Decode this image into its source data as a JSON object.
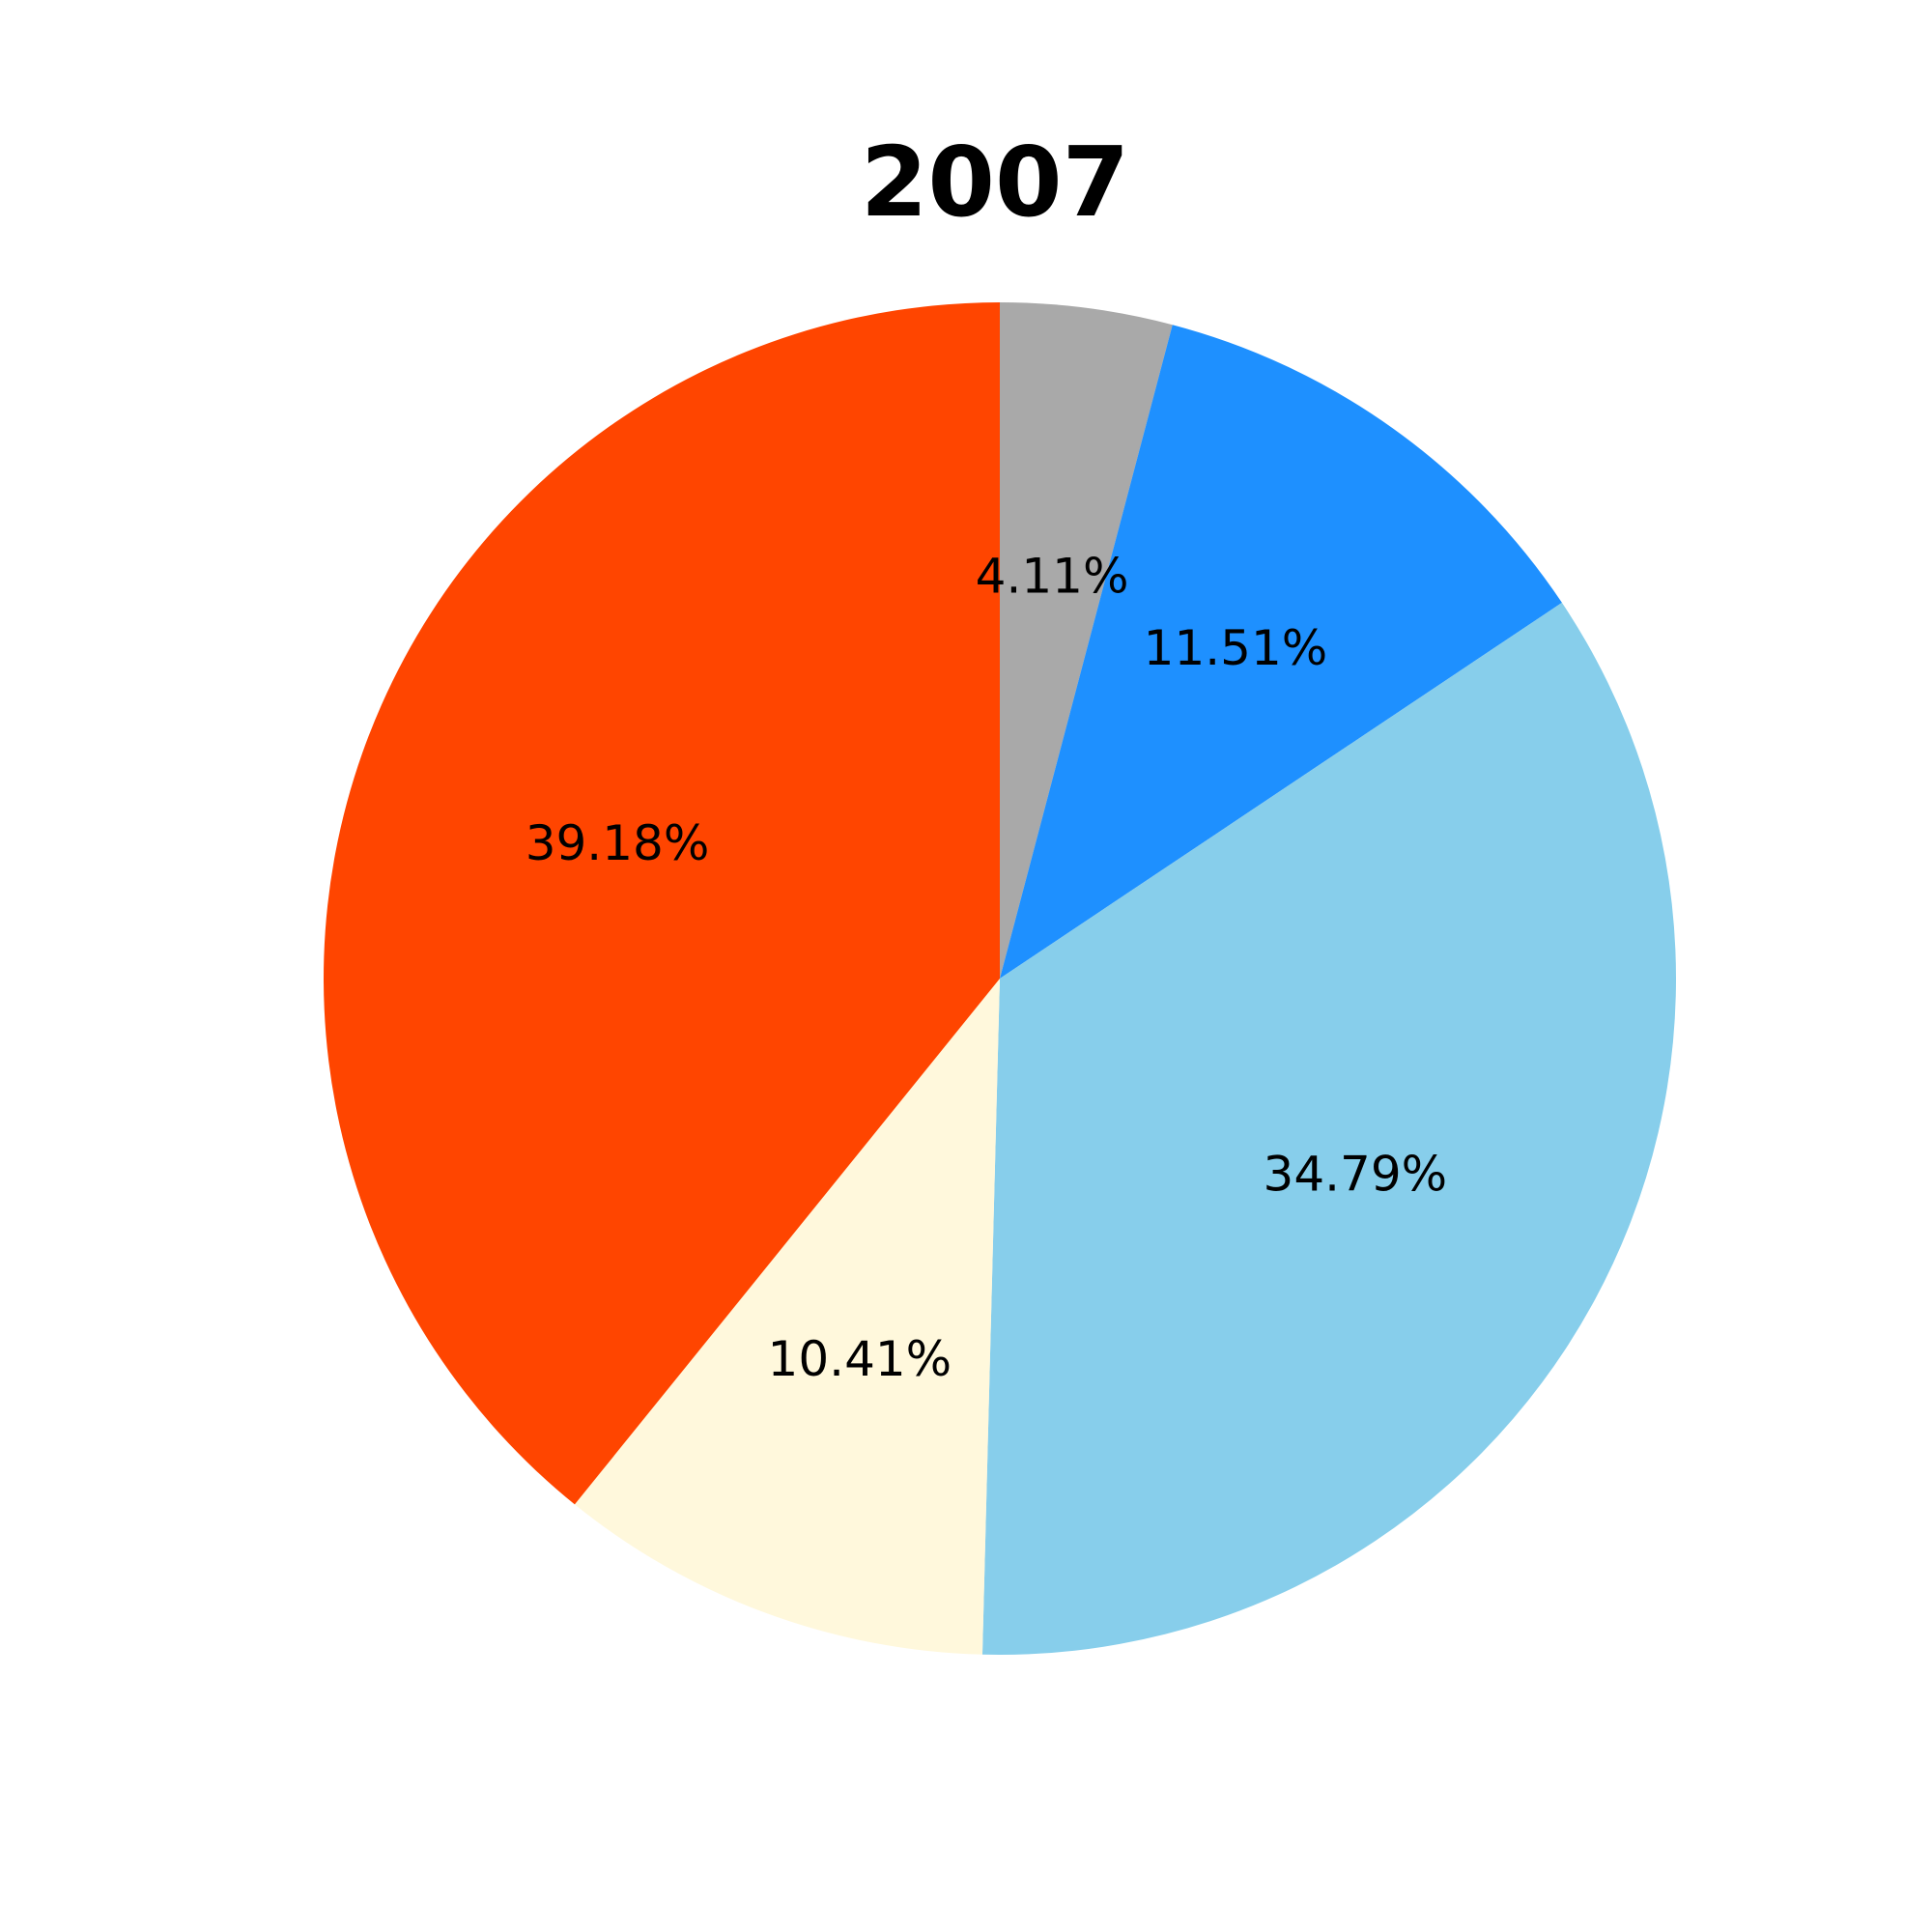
{
  "chart_data": {
    "type": "pie",
    "title": "2007",
    "start": "top",
    "direction": "clockwise",
    "slices": [
      {
        "value": 4.11,
        "label": "4.11%",
        "color": "#A9A9A9"
      },
      {
        "value": 11.51,
        "label": "11.51%",
        "color": "#1E90FF"
      },
      {
        "value": 34.79,
        "label": "34.79%",
        "color": "#87CEEB"
      },
      {
        "value": 10.41,
        "label": "10.41%",
        "color": "#FFF8DC"
      },
      {
        "value": 39.18,
        "label": "39.18%",
        "color": "#FF4500"
      }
    ]
  }
}
